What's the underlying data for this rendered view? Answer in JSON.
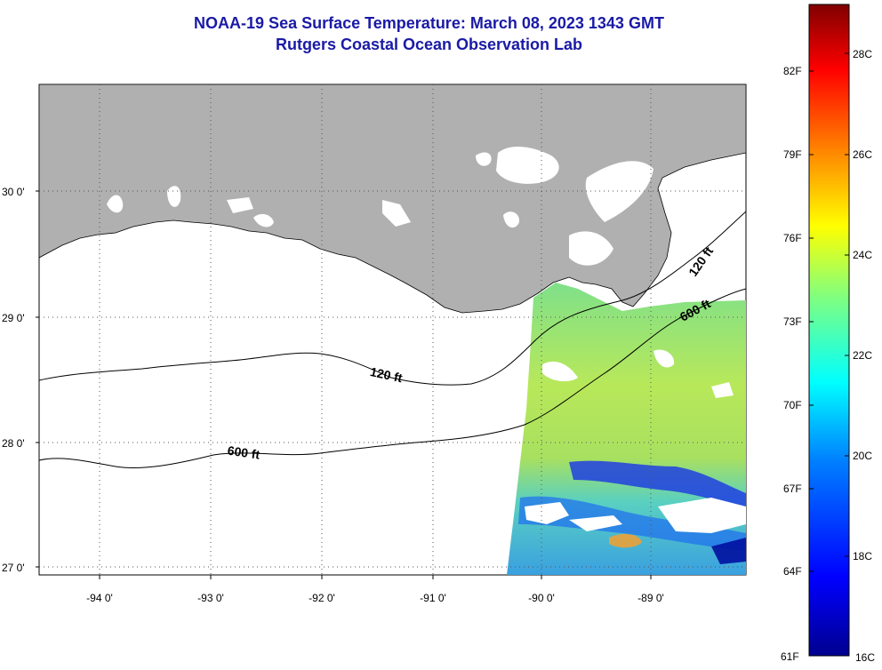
{
  "header": {
    "title_line1": "NOAA-19 Sea Surface Temperature:  March 08, 2023 1343 GMT",
    "title_line2": "Rutgers Coastal Ocean Observation Lab"
  },
  "map": {
    "lat_labels": [
      "30 0'",
      "29 0'",
      "28 0'",
      "27 0'"
    ],
    "lon_labels": [
      "-94 0'",
      "-93 0'",
      "-92 0'",
      "-91 0'",
      "-90 0'",
      "-89 0'"
    ],
    "contours": [
      {
        "label": "120 ft"
      },
      {
        "label": "600 ft"
      },
      {
        "label": "120 ft"
      },
      {
        "label": "600 ft"
      }
    ],
    "colors": {
      "land": "#b0b0b0",
      "cloud_or_nodata": "#ffffff",
      "grid": "#555555"
    }
  },
  "colorbar": {
    "fahrenheit_labels": [
      "82F",
      "79F",
      "76F",
      "73F",
      "70F",
      "67F",
      "64F",
      "61F"
    ],
    "celsius_labels": [
      "28C",
      "26C",
      "24C",
      "22C",
      "20C",
      "18C",
      "16C"
    ],
    "colors": [
      "#00008f",
      "#0000ff",
      "#0080ff",
      "#00ffff",
      "#80ff80",
      "#ffff00",
      "#ff8000",
      "#ff0000",
      "#800000"
    ]
  }
}
